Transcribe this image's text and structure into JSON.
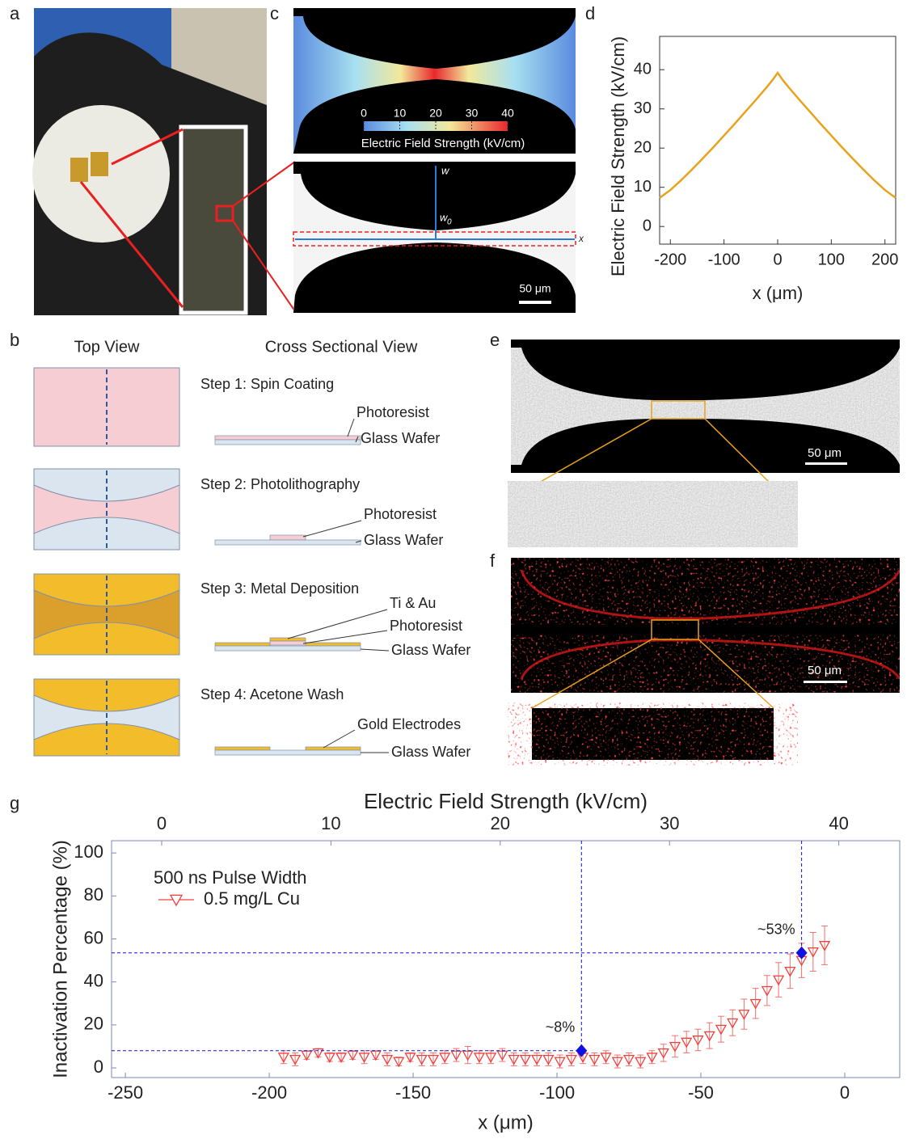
{
  "panel_labels": [
    "a",
    "b",
    "c",
    "d",
    "e",
    "f",
    "g"
  ],
  "panel_c": {
    "colorbar_ticks": [
      0,
      10,
      20,
      30,
      40
    ],
    "colorbar_label": "Electric Field Strength (kV/cm)",
    "w_label": "w",
    "w0_label": "w",
    "w0_subscript": "0",
    "x_label": "x",
    "scale_bar": "50 μm"
  },
  "panel_b": {
    "headers": [
      "Top View",
      "Cross Sectional View"
    ],
    "steps": [
      {
        "title": "Step 1: Spin Coating",
        "labels": [
          "Photoresist",
          "Glass Wafer"
        ]
      },
      {
        "title": "Step 2: Photolithography",
        "labels": [
          "Photoresist",
          "Glass Wafer"
        ]
      },
      {
        "title": "Step 3: Metal Deposition",
        "labels": [
          "Ti & Au",
          "Photoresist",
          "Glass Wafer"
        ]
      },
      {
        "title": "Step 4: Acetone Wash",
        "labels": [
          "Gold Electrodes",
          "Glass Wafer"
        ]
      }
    ]
  },
  "panel_e": {
    "scale_bar": "50 μm"
  },
  "panel_f": {
    "scale_bar": "50 μm"
  },
  "chart_data": [
    {
      "type": "line",
      "xlabel": "x (μm)",
      "ylabel": "Electric Field Strength (kV/cm)",
      "color": "#e8a21c",
      "x": [
        -220,
        -200,
        -180,
        -160,
        -140,
        -120,
        -100,
        -80,
        -60,
        -40,
        -20,
        -10,
        0,
        10,
        20,
        40,
        60,
        80,
        100,
        120,
        140,
        160,
        180,
        200,
        220
      ],
      "values": [
        7.3,
        9.3,
        11.8,
        14.5,
        17.3,
        20.2,
        23.2,
        26.2,
        29.3,
        32.4,
        35.6,
        37.3,
        39.2,
        37.3,
        35.6,
        32.4,
        29.3,
        26.2,
        23.2,
        20.2,
        17.3,
        14.5,
        11.8,
        9.3,
        7.3
      ],
      "xlim": [
        -220,
        220
      ],
      "xticks": [
        -200,
        -100,
        0,
        100,
        200
      ],
      "ylim": [
        -4.5,
        48.5
      ],
      "yticks": [
        0,
        10,
        20,
        30,
        40
      ]
    },
    {
      "type": "scatter",
      "xlabel": "x (μm)",
      "ylabel": "Inactivation Percentage (%)",
      "x2label": "Electric Field Strength (kV/cm)",
      "legend_title": "500 ns Pulse Width",
      "series": [
        {
          "name": "0.5 mg/L Cu",
          "color": "#f0403c",
          "x": [
            -195,
            -191,
            -187,
            -183,
            -179,
            -175,
            -171,
            -167,
            -163,
            -159,
            -155,
            -151,
            -147,
            -143,
            -139,
            -135,
            -131,
            -127,
            -123,
            -119,
            -115,
            -111,
            -107,
            -103,
            -99,
            -95,
            -91,
            -87,
            -83,
            -79,
            -75,
            -71,
            -67,
            -63,
            -59,
            -55,
            -51,
            -47,
            -43,
            -39,
            -35,
            -31,
            -27,
            -23,
            -19,
            -15,
            -11,
            -7
          ],
          "values": [
            5,
            4,
            6,
            7,
            5,
            5,
            6,
            5,
            6,
            4,
            3,
            5,
            4,
            4,
            5,
            6,
            6,
            5,
            5,
            6,
            4,
            4,
            4,
            4,
            3,
            4,
            5,
            4,
            5,
            3,
            4,
            3,
            5,
            7,
            10,
            12,
            13,
            15,
            18,
            21,
            25,
            30,
            36,
            41,
            45,
            50,
            54,
            57
          ],
          "errors": [
            3,
            3,
            2,
            2,
            2,
            2,
            2,
            3,
            2,
            3,
            2,
            2,
            3,
            3,
            3,
            3,
            4,
            3,
            3,
            3,
            3,
            3,
            3,
            3,
            3,
            3,
            3,
            3,
            3,
            3,
            3,
            3,
            3,
            4,
            5,
            5,
            5,
            6,
            6,
            6,
            7,
            7,
            7,
            8,
            8,
            8,
            9,
            9
          ]
        }
      ],
      "highlights": [
        {
          "x": -91.5,
          "y": 8,
          "label": "~8%",
          "color": "#1010e0"
        },
        {
          "x": -15,
          "y": 53.5,
          "label": "~53%",
          "color": "#1010e0"
        }
      ],
      "xlim": [
        -254.8,
        19.1
      ],
      "xticks": [
        -250,
        -200,
        -150,
        -100,
        -50,
        0
      ],
      "x2lim": [
        -2.96,
        43.6
      ],
      "x2ticks": [
        0,
        10,
        20,
        30,
        40
      ],
      "ylim": [
        -4.5,
        105.7
      ],
      "yticks": [
        0,
        20,
        40,
        60,
        80,
        100
      ]
    }
  ]
}
